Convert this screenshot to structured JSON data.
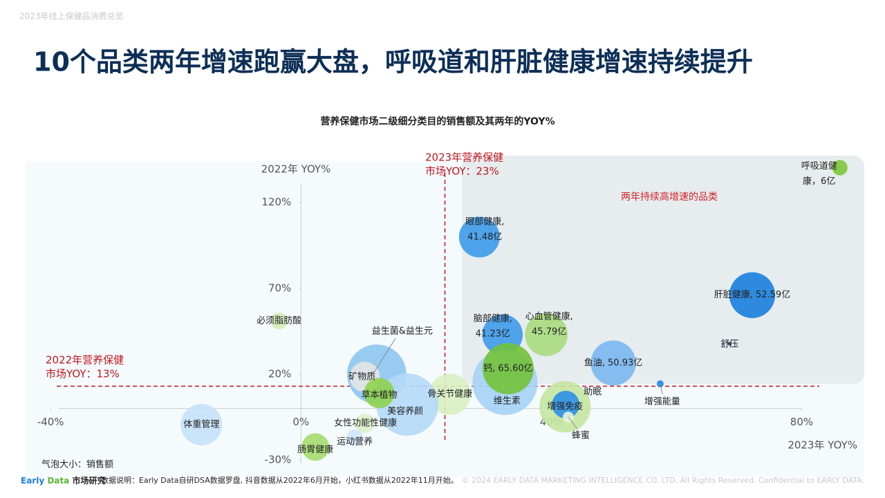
{
  "header": "2023年线上保健品消费总览",
  "title": "10个品类两年增速跑赢大盘，呼吸道和肝脏健康增速持续提升",
  "footer": {
    "brand_early": "Early",
    "brand_data": "Data",
    "brand_suffix": "市场研究",
    "note": "数据说明：Early Data自研DSA数据罗盘, 抖音数据从2022年6月开始，小红书数据从2022年11月开始。",
    "copyright": "© 2024 EARLY DATA MARKETING INTELLIGENCE CO. LTD. All Rights Reserved. Confidential to EARLY DATA."
  },
  "chart_data": {
    "type": "bubble",
    "title": "营养保健市场二级细分类目的销售额及其两年的YOY%",
    "x_label": "2023年 YOY%",
    "y_label": "2022年 YOY%",
    "size_note": "气泡大小：销售额",
    "region_label": "两年持续高增速的品类",
    "xlim": [
      -44,
      90
    ],
    "ylim": [
      -40,
      144
    ],
    "xticks": [
      {
        "value": -40,
        "label": "-40%"
      },
      {
        "value": 0,
        "label": "0%"
      },
      {
        "value": 40,
        "label": "40%"
      },
      {
        "value": 80,
        "label": "80%"
      }
    ],
    "yticks": [
      {
        "value": -30,
        "label": "-30%"
      },
      {
        "value": 20,
        "label": "20%"
      },
      {
        "value": 70,
        "label": "70%"
      },
      {
        "value": 120,
        "label": "120%"
      }
    ],
    "reference_x": {
      "value": 23,
      "label": [
        "2023年营养保健",
        "市场YOY：23%"
      ]
    },
    "reference_y": {
      "value": 13,
      "label": [
        "2022年营养保健",
        "市场YOY：13%"
      ]
    },
    "points": [
      {
        "label": [
          "呼吸道健",
          "康，6亿"
        ],
        "x": 86.1,
        "y": 140.2,
        "size": 6,
        "color": "#7cc63a"
      },
      {
        "label": [
          "眼部健康,",
          "41.48亿"
        ],
        "x": 28.5,
        "y": 99.8,
        "size": 41.48,
        "color": "#3d9be9"
      },
      {
        "label": [
          "肝脏健康, 52.59亿"
        ],
        "x": 72.1,
        "y": 66.0,
        "size": 52.59,
        "color": "#1a7fdc"
      },
      {
        "label": [
          "必须脂肪酸"
        ],
        "x": -3.5,
        "y": 51,
        "size": 7,
        "color": "#d5ecb8"
      },
      {
        "label": [
          "益生菌&益生元"
        ],
        "x": 12.1,
        "y": 20,
        "size": 88,
        "color": "#8ec5f0"
      },
      {
        "label": [
          "矿物质"
        ],
        "x": 10.2,
        "y": 18.4,
        "size": 23,
        "color": "#e6e6e6"
      },
      {
        "label": [
          "脑部健康,",
          "41.23亿"
        ],
        "x": 32.2,
        "y": 43,
        "size": 41.23,
        "color": "#3d9be9"
      },
      {
        "label": [
          "心血管健康,",
          "45.79亿"
        ],
        "x": 39.2,
        "y": 43,
        "size": 45.79,
        "color": "#a9dc7d"
      },
      {
        "label": [
          "维生素"
        ],
        "x": 32.6,
        "y": 15.2,
        "size": 106,
        "color": "#a6d2f5"
      },
      {
        "label": [
          "钙, 65.60亿"
        ],
        "x": 33.1,
        "y": 23.2,
        "size": 65.6,
        "color": "#72c23a"
      },
      {
        "label": [
          "鱼油, 50.93亿"
        ],
        "x": 49.9,
        "y": 26.5,
        "size": 50.93,
        "color": "#7ab8f0"
      },
      {
        "label": [
          "舒压"
        ],
        "x": 68.5,
        "y": 37.7,
        "size": 0.4,
        "color": "#1a4f8a"
      },
      {
        "label": [
          "增强能量"
        ],
        "x": 57.4,
        "y": 14.4,
        "size": 1.2,
        "color": "#1e88e5"
      },
      {
        "label": [
          "增强免疫"
        ],
        "x": 42.2,
        "y": 1,
        "size": 66,
        "color": "#c4e6a0"
      },
      {
        "label": [
          "助眠"
        ],
        "x": 42.3,
        "y": 2.3,
        "size": 19,
        "color": "#2f8fe8"
      },
      {
        "label": [
          "蜂蜜"
        ],
        "x": 42.7,
        "y": -5,
        "size": 3,
        "color": "#e8f4dd"
      },
      {
        "label": [
          "骨关节健康"
        ],
        "x": 23.8,
        "y": 8.3,
        "size": 43,
        "color": "#d9efc2"
      },
      {
        "label": [
          "美容养颜"
        ],
        "x": 17,
        "y": 2.3,
        "size": 97,
        "color": "#b5d9f7"
      },
      {
        "label": [
          "草本植物"
        ],
        "x": 12.5,
        "y": 9,
        "size": 23,
        "color": "#8fd14f"
      },
      {
        "label": [
          "体重管理"
        ],
        "x": -15.9,
        "y": -9.4,
        "size": 43,
        "color": "#c5e1f9"
      },
      {
        "label": [
          "女性功能性健康"
        ],
        "x": 10.2,
        "y": -8.6,
        "size": 9,
        "color": "#dcefc9"
      },
      {
        "label": [
          "运动营养"
        ],
        "x": 8.6,
        "y": -17,
        "size": 7,
        "color": "#cfe5f8"
      },
      {
        "label": [
          "肠胃健康"
        ],
        "x": 2.3,
        "y": -22.4,
        "size": 19,
        "color": "#a5dc6e"
      }
    ]
  }
}
